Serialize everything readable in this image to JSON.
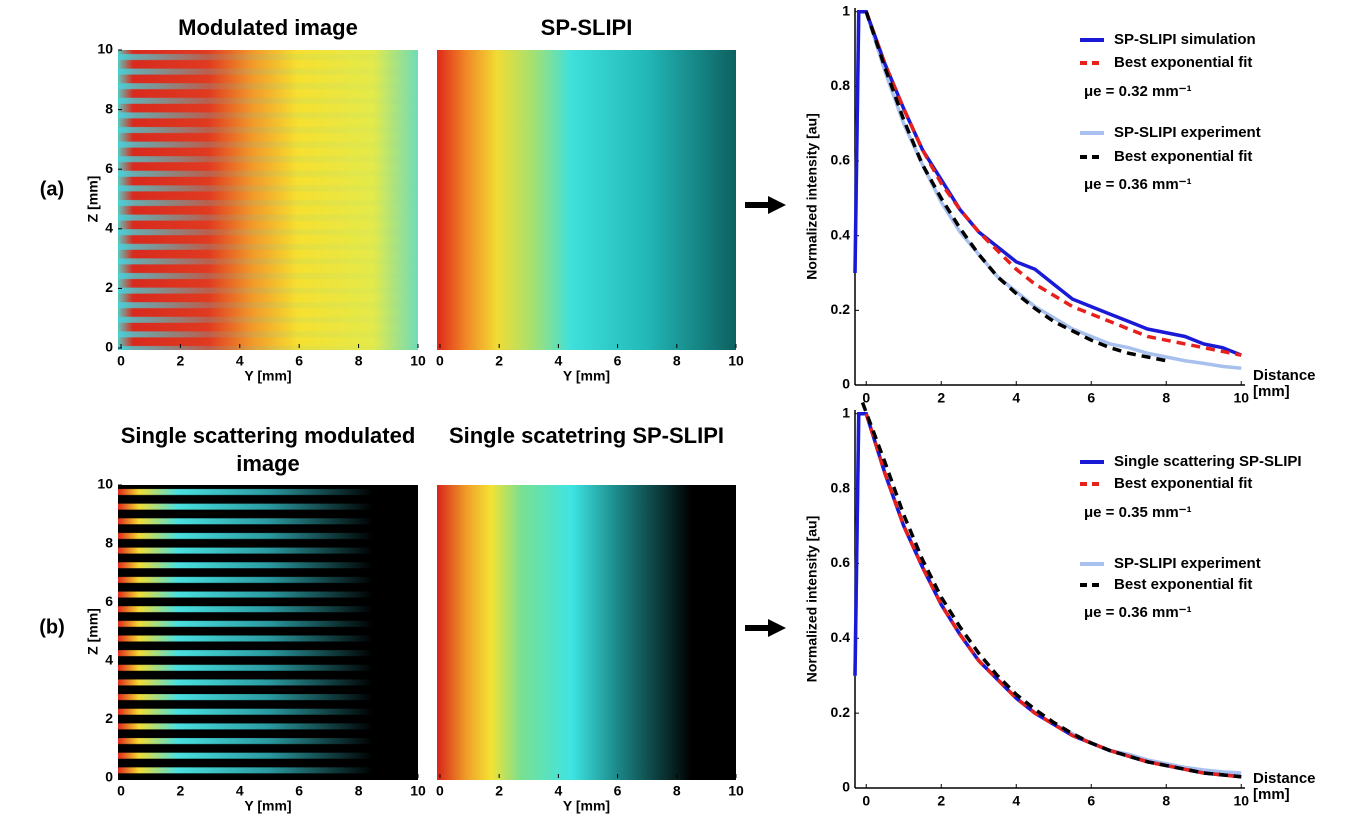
{
  "panel_labels": [
    "(a)",
    "(b)"
  ],
  "chart_data": [
    {
      "type": "image",
      "title": "Modulated image",
      "xlabel": "Y [mm]",
      "ylabel": "Z [mm]",
      "xlim": [
        -0.1,
        10
      ],
      "xticks": [
        0,
        2,
        4,
        6,
        8,
        10
      ],
      "ylim": [
        0,
        10
      ],
      "yticks": [
        0,
        2,
        4,
        6,
        8,
        10
      ]
    },
    {
      "type": "image",
      "title": "SP-SLIPI",
      "xlabel": "Y [mm]",
      "xlim": [
        -0.1,
        10
      ],
      "xticks": [
        0,
        2,
        4,
        6,
        8,
        10
      ],
      "ylim": [
        0,
        10
      ]
    },
    {
      "type": "line",
      "xlabel": "Distance [mm]",
      "ylabel": "Normalized intensity [au]",
      "xlim": [
        -0.3,
        10.1
      ],
      "xticks": [
        0,
        2,
        4,
        6,
        8,
        10
      ],
      "ylim": [
        0,
        1.01
      ],
      "yticks": [
        0,
        0.2,
        0.4,
        0.6,
        0.8,
        1
      ],
      "annotations": [
        "μe = 0.32 mm⁻¹",
        "μe = 0.36 mm⁻¹"
      ],
      "series": [
        {
          "name": "SP-SLIPI experiment",
          "color": "#a8c0ee",
          "dashed": false,
          "x": [
            -0.3,
            -0.2,
            0,
            0.5,
            1,
            1.5,
            2,
            2.5,
            3,
            3.5,
            4,
            4.5,
            5,
            5.5,
            6,
            6.5,
            7,
            7.5,
            8,
            8.5,
            9,
            9.5,
            10
          ],
          "values": [
            0.3,
            1.0,
            1,
            0.84,
            0.7,
            0.59,
            0.49,
            0.41,
            0.35,
            0.29,
            0.25,
            0.21,
            0.18,
            0.15,
            0.13,
            0.11,
            0.1,
            0.085,
            0.075,
            0.065,
            0.058,
            0.05,
            0.045
          ]
        },
        {
          "name": "SP-SLIPI simulation",
          "color": "#1a1ad6",
          "dashed": false,
          "x": [
            -0.3,
            -0.2,
            0,
            0.5,
            1,
            1.5,
            2,
            2.5,
            3,
            3.5,
            4,
            4.5,
            5,
            5.5,
            6,
            6.5,
            7,
            7.5,
            8,
            8.5,
            9,
            9.5,
            10
          ],
          "values": [
            0.3,
            1.0,
            1.0,
            0.86,
            0.74,
            0.63,
            0.55,
            0.47,
            0.41,
            0.37,
            0.33,
            0.31,
            0.27,
            0.23,
            0.21,
            0.19,
            0.17,
            0.15,
            0.14,
            0.13,
            0.11,
            0.1,
            0.08
          ]
        },
        {
          "name": "Best exponential fit",
          "color": "#e8201c",
          "dashed": true,
          "x": [
            0,
            0.5,
            1,
            1.5,
            2,
            2.5,
            3,
            3.5,
            4,
            4.5,
            5,
            5.5,
            6,
            6.5,
            7,
            7.5,
            8,
            8.5,
            9,
            9.5,
            10
          ],
          "values": [
            1,
            0.86,
            0.74,
            0.63,
            0.54,
            0.47,
            0.41,
            0.36,
            0.31,
            0.27,
            0.24,
            0.21,
            0.19,
            0.17,
            0.15,
            0.13,
            0.12,
            0.11,
            0.1,
            0.09,
            0.08
          ]
        },
        {
          "name": "Best exponential fit",
          "color": "#000000",
          "dashed": true,
          "x": [
            0,
            0.5,
            1,
            1.5,
            2,
            2.5,
            3,
            3.5,
            4,
            4.5,
            5,
            5.5,
            6,
            6.5,
            7,
            7.5,
            8
          ],
          "values": [
            1.0,
            0.85,
            0.71,
            0.59,
            0.5,
            0.42,
            0.35,
            0.29,
            0.245,
            0.205,
            0.17,
            0.145,
            0.12,
            0.1,
            0.085,
            0.075,
            0.065
          ]
        }
      ]
    },
    {
      "type": "image",
      "title": "Single scattering modulated image",
      "xlabel": "Y [mm]",
      "ylabel": "Z [mm]",
      "xlim": [
        -0.1,
        10
      ],
      "xticks": [
        0,
        2,
        4,
        6,
        8,
        10
      ],
      "ylim": [
        0,
        10
      ],
      "yticks": [
        0,
        2,
        4,
        6,
        8,
        10
      ]
    },
    {
      "type": "image",
      "title": "Single scatetring SP-SLIPI",
      "xlabel": "Y [mm]",
      "xlim": [
        -0.1,
        10
      ],
      "xticks": [
        0,
        2,
        4,
        6,
        8,
        10
      ],
      "ylim": [
        0,
        10
      ]
    },
    {
      "type": "line",
      "xlabel": "Distance [mm]",
      "ylabel": "Normalized intensity [au]",
      "xlim": [
        -0.3,
        10.1
      ],
      "xticks": [
        0,
        2,
        4,
        6,
        8,
        10
      ],
      "ylim": [
        0,
        1.01
      ],
      "yticks": [
        0,
        0.2,
        0.4,
        0.6,
        0.8,
        1
      ],
      "annotations": [
        "μe = 0.35 mm⁻¹",
        "μe = 0.36 mm⁻¹"
      ],
      "series": [
        {
          "name": "SP-SLIPI experiment",
          "color": "#a8c0ee",
          "dashed": false,
          "x": [
            -0.3,
            -0.2,
            0,
            0.5,
            1,
            1.5,
            2,
            2.5,
            3,
            3.5,
            4,
            4.5,
            5,
            5.5,
            6,
            6.5,
            7,
            7.5,
            8,
            8.5,
            9,
            9.5,
            10
          ],
          "values": [
            0.3,
            1.0,
            1,
            0.84,
            0.7,
            0.59,
            0.49,
            0.41,
            0.34,
            0.29,
            0.24,
            0.2,
            0.17,
            0.145,
            0.12,
            0.1,
            0.09,
            0.075,
            0.065,
            0.055,
            0.048,
            0.043,
            0.04
          ]
        },
        {
          "name": "Single scattering SP-SLIPI",
          "color": "#1a1ad6",
          "dashed": false,
          "x": [
            -0.3,
            -0.2,
            0,
            0.5,
            1,
            1.5,
            2,
            2.5,
            3,
            3.5,
            4,
            4.5,
            5,
            5.5,
            6,
            6.5,
            7,
            7.5,
            8,
            8.5,
            9,
            9.5,
            10
          ],
          "values": [
            0.3,
            1.0,
            1,
            0.84,
            0.7,
            0.59,
            0.49,
            0.41,
            0.34,
            0.29,
            0.24,
            0.2,
            0.17,
            0.14,
            0.12,
            0.1,
            0.085,
            0.07,
            0.06,
            0.05,
            0.04,
            0.035,
            0.03
          ]
        },
        {
          "name": "Best exponential fit",
          "color": "#e8201c",
          "dashed": true,
          "x": [
            0,
            0.5,
            1,
            1.5,
            2,
            2.5,
            3,
            3.5,
            4,
            4.5,
            5,
            5.5,
            6,
            6.5,
            7,
            7.5,
            8,
            8.5,
            9,
            9.5,
            10
          ],
          "values": [
            1,
            0.84,
            0.7,
            0.59,
            0.49,
            0.41,
            0.34,
            0.29,
            0.24,
            0.2,
            0.17,
            0.14,
            0.12,
            0.1,
            0.085,
            0.07,
            0.06,
            0.05,
            0.04,
            0.035,
            0.03
          ]
        },
        {
          "name": "Best exponential fit",
          "color": "#000000",
          "dashed": true,
          "x": [
            -0.1,
            0.5,
            1,
            1.5,
            2,
            2.5,
            3,
            3.5,
            4,
            4.5,
            5,
            5.5,
            6,
            6.5,
            7,
            7.5,
            8,
            8.5,
            9,
            9.5,
            10
          ],
          "values": [
            1.03,
            0.87,
            0.73,
            0.61,
            0.51,
            0.43,
            0.36,
            0.3,
            0.25,
            0.21,
            0.175,
            0.145,
            0.12,
            0.1,
            0.085,
            0.07,
            0.06,
            0.05,
            0.04,
            0.035,
            0.03
          ]
        }
      ]
    }
  ]
}
